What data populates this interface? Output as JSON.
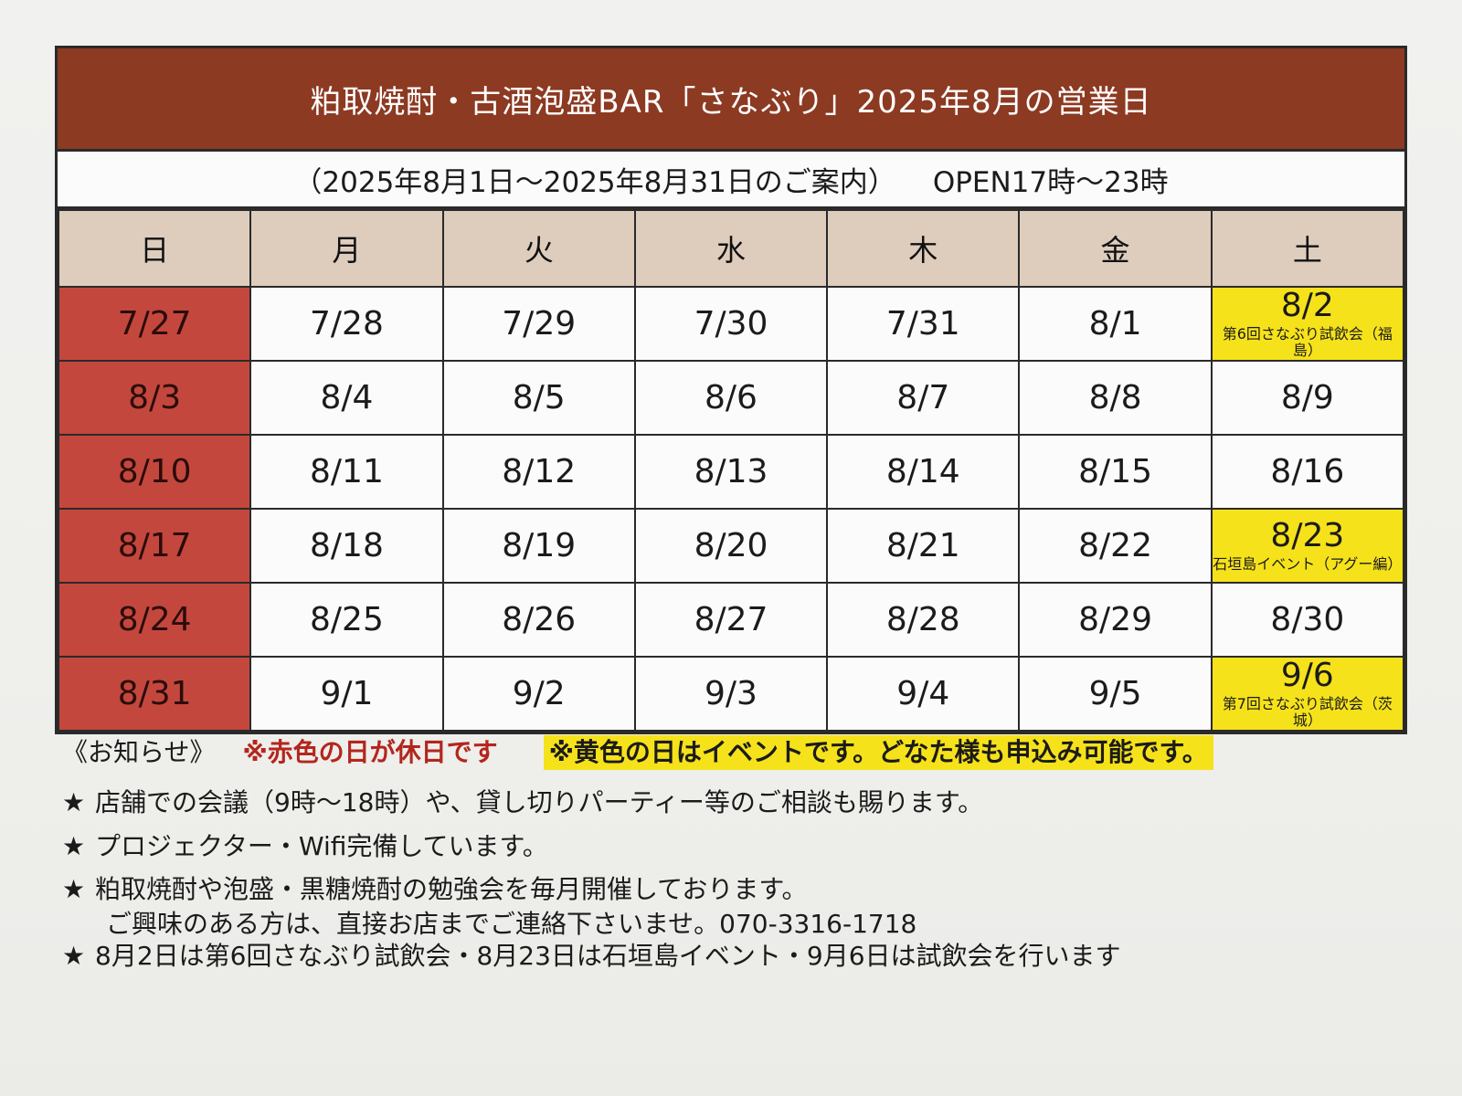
{
  "title": "粕取焼酎・古酒泡盛BAR「さなぶり」2025年8月の営業日",
  "info": {
    "period": "（2025年8月1日～2025年8月31日のご案内）",
    "hours": "OPEN17時～23時"
  },
  "weekdays": [
    "日",
    "月",
    "火",
    "水",
    "木",
    "金",
    "土"
  ],
  "weeks": [
    [
      {
        "date": "7/27",
        "type": "holiday"
      },
      {
        "date": "7/28"
      },
      {
        "date": "7/29"
      },
      {
        "date": "7/30"
      },
      {
        "date": "7/31"
      },
      {
        "date": "8/1"
      },
      {
        "date": "8/2",
        "type": "event",
        "note": "第6回さなぶり試飲会（福島）"
      }
    ],
    [
      {
        "date": "8/3",
        "type": "holiday"
      },
      {
        "date": "8/4"
      },
      {
        "date": "8/5"
      },
      {
        "date": "8/6"
      },
      {
        "date": "8/7"
      },
      {
        "date": "8/8"
      },
      {
        "date": "8/9"
      }
    ],
    [
      {
        "date": "8/10",
        "type": "holiday"
      },
      {
        "date": "8/11"
      },
      {
        "date": "8/12"
      },
      {
        "date": "8/13"
      },
      {
        "date": "8/14"
      },
      {
        "date": "8/15"
      },
      {
        "date": "8/16"
      }
    ],
    [
      {
        "date": "8/17",
        "type": "holiday"
      },
      {
        "date": "8/18"
      },
      {
        "date": "8/19"
      },
      {
        "date": "8/20"
      },
      {
        "date": "8/21"
      },
      {
        "date": "8/22"
      },
      {
        "date": "8/23",
        "type": "event",
        "note": "石垣島イベント（アグー編）"
      }
    ],
    [
      {
        "date": "8/24",
        "type": "holiday"
      },
      {
        "date": "8/25"
      },
      {
        "date": "8/26"
      },
      {
        "date": "8/27"
      },
      {
        "date": "8/28"
      },
      {
        "date": "8/29"
      },
      {
        "date": "8/30"
      }
    ],
    [
      {
        "date": "8/31",
        "type": "holiday"
      },
      {
        "date": "9/1"
      },
      {
        "date": "9/2"
      },
      {
        "date": "9/3"
      },
      {
        "date": "9/4"
      },
      {
        "date": "9/5"
      },
      {
        "date": "9/6",
        "type": "event",
        "note": "第7回さなぶり試飲会（茨城）"
      }
    ]
  ],
  "notice": {
    "label": "《お知らせ》",
    "red_text": "※赤色の日が休日です",
    "yellow_text": "※黄色の日はイベントです。どなた様も申込み可能です。"
  },
  "notes": {
    "star": "★",
    "line1": "店舗での会議（9時～18時）や、貸し切りパーティー等のご相談も賜ります。",
    "line2": "プロジェクター・Wifi完備しています。",
    "line3": "粕取焼酎や泡盛・黒糖焼酎の勉強会を毎月開催しております。",
    "line3_sub": "ご興味のある方は、直接お店までご連絡下さいませ。070-3316-1718",
    "line4": "8月2日は第6回さなぶり試飲会・8月23日は石垣島イベント・9月6日は試飲会を行います"
  },
  "colors": {
    "title_bg": "#8c3a22",
    "header_bg": "#decdbd",
    "holiday": "#c4473d",
    "event": "#f6e21a"
  }
}
